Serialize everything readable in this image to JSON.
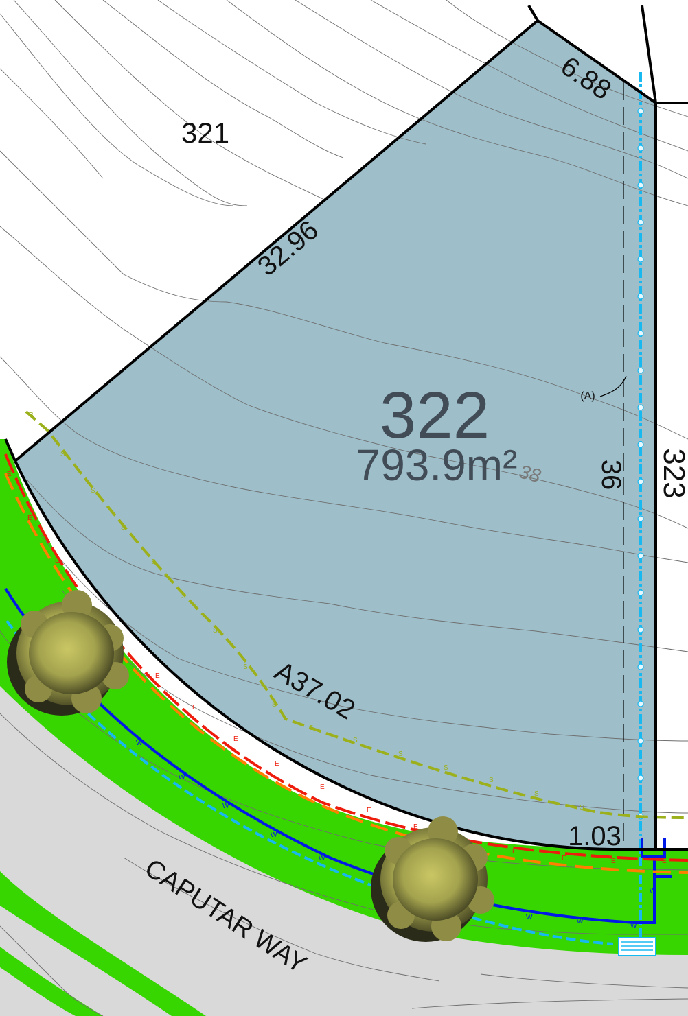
{
  "colors": {
    "lot_fill": "#9ebfca",
    "boundary": "#000000",
    "verge": "#37d600",
    "road": "#d9d9d9",
    "sewer": "#9bb01a",
    "electric": "#ee1c0c",
    "gas": "#ff7f00",
    "water": "#0019e6",
    "stormwater": "#18b8f0",
    "tree_canopy": "#b6b657",
    "lot_number_text": "#414c57"
  },
  "lot": {
    "number": "322",
    "area": "793.9m²",
    "contour_label": "38"
  },
  "neighbours": {
    "north_west": "321",
    "east": "323"
  },
  "dimensions": {
    "north_west_boundary": "32.96",
    "north_boundary": "6.88",
    "east_boundary": "36",
    "frontage_arc": "A37.02",
    "south_corner": "1.03"
  },
  "easement_label": "(A)",
  "road_name": "CAPUTAR WAY",
  "service_letters": {
    "sewer": "S",
    "electric": "E",
    "water": "W"
  },
  "icons": [
    "street-tree-icon",
    "stormwater-pit-icon"
  ]
}
